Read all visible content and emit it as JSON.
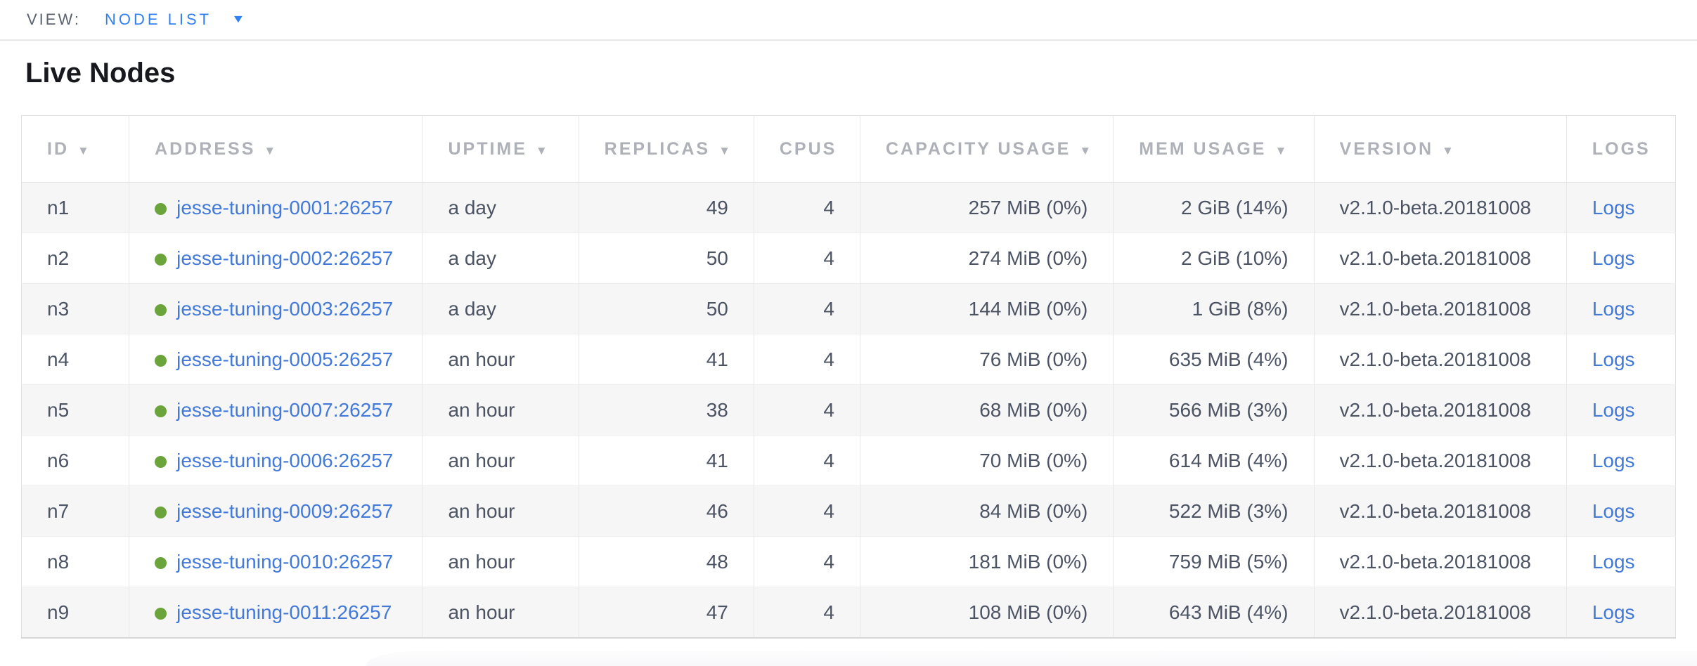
{
  "view_bar": {
    "label": "VIEW:",
    "selector": {
      "value": "NODE LIST"
    }
  },
  "icons": {
    "dropdown": "▼",
    "sort_desc": "▼",
    "live_status": "green-dot"
  },
  "section": {
    "title": "Live Nodes"
  },
  "nodes_table": {
    "columns": [
      {
        "key": "id",
        "label": "ID",
        "sortable": true,
        "align": "left"
      },
      {
        "key": "address",
        "label": "ADDRESS",
        "sortable": true,
        "align": "left"
      },
      {
        "key": "uptime",
        "label": "UPTIME",
        "sortable": true,
        "align": "left"
      },
      {
        "key": "replicas",
        "label": "REPLICAS",
        "sortable": true,
        "align": "right"
      },
      {
        "key": "cpus",
        "label": "CPUS",
        "sortable": false,
        "align": "right"
      },
      {
        "key": "capacity_usage",
        "label": "CAPACITY USAGE",
        "sortable": true,
        "align": "right"
      },
      {
        "key": "mem_usage",
        "label": "MEM USAGE",
        "sortable": true,
        "align": "right"
      },
      {
        "key": "version",
        "label": "VERSION",
        "sortable": true,
        "align": "left"
      },
      {
        "key": "logs",
        "label": "LOGS",
        "sortable": false,
        "align": "left"
      }
    ],
    "rows": [
      {
        "id": "n1",
        "status": "live",
        "address": "jesse-tuning-0001:26257",
        "uptime": "a day",
        "replicas": "49",
        "cpus": "4",
        "capacity_usage": "257 MiB (0%)",
        "mem_usage": "2 GiB (14%)",
        "version": "v2.1.0-beta.20181008",
        "logs": "Logs"
      },
      {
        "id": "n2",
        "status": "live",
        "address": "jesse-tuning-0002:26257",
        "uptime": "a day",
        "replicas": "50",
        "cpus": "4",
        "capacity_usage": "274 MiB (0%)",
        "mem_usage": "2 GiB (10%)",
        "version": "v2.1.0-beta.20181008",
        "logs": "Logs"
      },
      {
        "id": "n3",
        "status": "live",
        "address": "jesse-tuning-0003:26257",
        "uptime": "a day",
        "replicas": "50",
        "cpus": "4",
        "capacity_usage": "144 MiB (0%)",
        "mem_usage": "1 GiB (8%)",
        "version": "v2.1.0-beta.20181008",
        "logs": "Logs"
      },
      {
        "id": "n4",
        "status": "live",
        "address": "jesse-tuning-0005:26257",
        "uptime": "an hour",
        "replicas": "41",
        "cpus": "4",
        "capacity_usage": "76 MiB (0%)",
        "mem_usage": "635 MiB (4%)",
        "version": "v2.1.0-beta.20181008",
        "logs": "Logs"
      },
      {
        "id": "n5",
        "status": "live",
        "address": "jesse-tuning-0007:26257",
        "uptime": "an hour",
        "replicas": "38",
        "cpus": "4",
        "capacity_usage": "68 MiB (0%)",
        "mem_usage": "566 MiB (3%)",
        "version": "v2.1.0-beta.20181008",
        "logs": "Logs"
      },
      {
        "id": "n6",
        "status": "live",
        "address": "jesse-tuning-0006:26257",
        "uptime": "an hour",
        "replicas": "41",
        "cpus": "4",
        "capacity_usage": "70 MiB (0%)",
        "mem_usage": "614 MiB (4%)",
        "version": "v2.1.0-beta.20181008",
        "logs": "Logs"
      },
      {
        "id": "n7",
        "status": "live",
        "address": "jesse-tuning-0009:26257",
        "uptime": "an hour",
        "replicas": "46",
        "cpus": "4",
        "capacity_usage": "84 MiB (0%)",
        "mem_usage": "522 MiB (3%)",
        "version": "v2.1.0-beta.20181008",
        "logs": "Logs"
      },
      {
        "id": "n8",
        "status": "live",
        "address": "jesse-tuning-0010:26257",
        "uptime": "an hour",
        "replicas": "48",
        "cpus": "4",
        "capacity_usage": "181 MiB (0%)",
        "mem_usage": "759 MiB (5%)",
        "version": "v2.1.0-beta.20181008",
        "logs": "Logs"
      },
      {
        "id": "n9",
        "status": "live",
        "address": "jesse-tuning-0011:26257",
        "uptime": "an hour",
        "replicas": "47",
        "cpus": "4",
        "capacity_usage": "108 MiB (0%)",
        "mem_usage": "643 MiB (4%)",
        "version": "v2.1.0-beta.20181008",
        "logs": "Logs"
      }
    ]
  },
  "colors": {
    "link": "#4379d8",
    "view_accent": "#3180ef",
    "view_label": "#5c6370",
    "title_text": "#17191e",
    "status_live_green": "#6aa43a",
    "header_text": "#aeb1b7",
    "cell_text": "#4c5464",
    "row_stripe": "#f6f6f7"
  }
}
